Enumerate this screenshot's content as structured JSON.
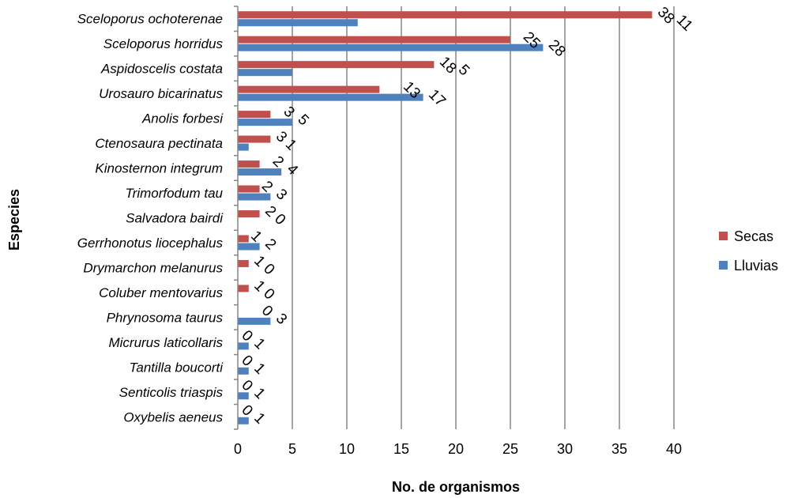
{
  "chart_data": {
    "type": "bar",
    "orientation": "horizontal",
    "title": "",
    "xlabel": "No. de organismos",
    "ylabel": "Especies",
    "xlim": [
      0,
      40
    ],
    "xticks": [
      "0",
      "5",
      "10",
      "15",
      "20",
      "25",
      "30",
      "35",
      "40"
    ],
    "grid": true,
    "legend_position": "right",
    "categories": [
      "Sceloporus ochoterenae",
      "Sceloporus horridus",
      "Aspidoscelis costata",
      "Urosauro bicarinatus",
      "Anolis forbesi",
      "Ctenosaura pectinata",
      "Kinosternon integrum",
      "Trimorfodum tau",
      "Salvadora bairdi",
      "Gerrhonotus liocephalus",
      "Drymarchon melanurus",
      "Coluber mentovarius",
      "Phrynosoma taurus",
      "Micrurus laticollaris",
      "Tantilla boucorti",
      "Senticolis triaspis",
      "Oxybelis aeneus"
    ],
    "series": [
      {
        "name": "Secas",
        "color": "#C0504D",
        "values": [
          38,
          25,
          18,
          13,
          3,
          3,
          2,
          2,
          2,
          1,
          1,
          1,
          0,
          0,
          0,
          0,
          0
        ]
      },
      {
        "name": "Lluvias",
        "color": "#4F81BD",
        "values": [
          11,
          28,
          5,
          17,
          5,
          1,
          4,
          3,
          0,
          2,
          0,
          0,
          3,
          1,
          1,
          1,
          1
        ]
      }
    ]
  }
}
